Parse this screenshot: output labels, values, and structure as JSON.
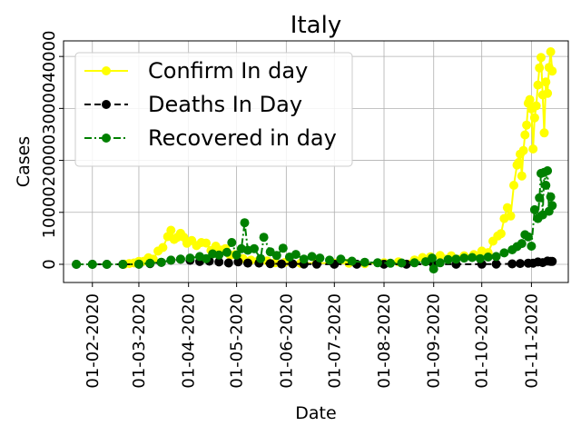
{
  "chart_data": {
    "type": "line",
    "title": "Italy",
    "xlabel": "Date",
    "ylabel": "Cases",
    "x_start": "2020-01-22",
    "x_end": "2020-11-14",
    "x_ticks": [
      "01-02-2020",
      "01-03-2020",
      "01-04-2020",
      "01-05-2020",
      "01-06-2020",
      "01-07-2020",
      "01-08-2020",
      "01-09-2020",
      "01-10-2020",
      "01-11-2020"
    ],
    "y_ticks": [
      "0",
      "10000",
      "20000",
      "30000",
      "40000"
    ],
    "ylim": [
      -3500,
      43000
    ],
    "grid": true,
    "legend_position": "top-left",
    "series": [
      {
        "name": "Confirm In day",
        "color": "#ffff00",
        "line_style": "solid",
        "marker": "circle",
        "values": [
          [
            "2020-02-21",
            20
          ],
          [
            "2020-02-24",
            150
          ],
          [
            "2020-02-27",
            250
          ],
          [
            "2020-03-01",
            570
          ],
          [
            "2020-03-04",
            590
          ],
          [
            "2020-03-07",
            1250
          ],
          [
            "2020-03-10",
            980
          ],
          [
            "2020-03-13",
            2550
          ],
          [
            "2020-03-16",
            3230
          ],
          [
            "2020-03-19",
            5320
          ],
          [
            "2020-03-21",
            6560
          ],
          [
            "2020-03-23",
            4790
          ],
          [
            "2020-03-25",
            5210
          ],
          [
            "2020-03-27",
            5960
          ],
          [
            "2020-03-29",
            5220
          ],
          [
            "2020-03-31",
            4050
          ],
          [
            "2020-04-03",
            4580
          ],
          [
            "2020-04-06",
            3600
          ],
          [
            "2020-04-09",
            4200
          ],
          [
            "2020-04-12",
            4090
          ],
          [
            "2020-04-15",
            2670
          ],
          [
            "2020-04-18",
            3490
          ],
          [
            "2020-04-21",
            2730
          ],
          [
            "2020-04-24",
            3020
          ],
          [
            "2020-04-27",
            1740
          ],
          [
            "2020-04-30",
            1870
          ],
          [
            "2020-05-05",
            1080
          ],
          [
            "2020-05-10",
            800
          ],
          [
            "2020-05-15",
            790
          ],
          [
            "2020-05-20",
            660
          ],
          [
            "2020-05-25",
            300
          ],
          [
            "2020-05-31",
            350
          ],
          [
            "2020-06-10",
            200
          ],
          [
            "2020-06-20",
            260
          ],
          [
            "2020-07-01",
            180
          ],
          [
            "2020-07-10",
            230
          ],
          [
            "2020-07-20",
            130
          ],
          [
            "2020-08-01",
            300
          ],
          [
            "2020-08-10",
            460
          ],
          [
            "2020-08-20",
            840
          ],
          [
            "2020-08-25",
            1300
          ],
          [
            "2020-08-30",
            1440
          ],
          [
            "2020-09-05",
            1700
          ],
          [
            "2020-09-12",
            1640
          ],
          [
            "2020-09-20",
            1640
          ],
          [
            "2020-09-26",
            1870
          ],
          [
            "2020-10-01",
            2550
          ],
          [
            "2020-10-05",
            2260
          ],
          [
            "2020-10-08",
            4450
          ],
          [
            "2020-10-11",
            5450
          ],
          [
            "2020-10-13",
            5900
          ],
          [
            "2020-10-15",
            8800
          ],
          [
            "2020-10-17",
            10900
          ],
          [
            "2020-10-19",
            9300
          ],
          [
            "2020-10-21",
            15200
          ],
          [
            "2020-10-23",
            19100
          ],
          [
            "2020-10-24",
            19600
          ],
          [
            "2020-10-25",
            21200
          ],
          [
            "2020-10-26",
            17000
          ],
          [
            "2020-10-27",
            21900
          ],
          [
            "2020-10-28",
            24900
          ],
          [
            "2020-10-29",
            26800
          ],
          [
            "2020-10-30",
            31000
          ],
          [
            "2020-10-31",
            31700
          ],
          [
            "2020-11-01",
            29900
          ],
          [
            "2020-11-02",
            22200
          ],
          [
            "2020-11-03",
            28200
          ],
          [
            "2020-11-04",
            30500
          ],
          [
            "2020-11-05",
            34500
          ],
          [
            "2020-11-06",
            37800
          ],
          [
            "2020-11-07",
            39800
          ],
          [
            "2020-11-08",
            32600
          ],
          [
            "2020-11-09",
            25300
          ],
          [
            "2020-11-10",
            35100
          ],
          [
            "2020-11-11",
            32900
          ],
          [
            "2020-11-12",
            37900
          ],
          [
            "2020-11-13",
            40900
          ],
          [
            "2020-11-14",
            37200
          ]
        ]
      },
      {
        "name": "Deaths In Day",
        "color": "#000000",
        "line_style": "dashed",
        "marker": "circle",
        "values": [
          [
            "2020-01-22",
            0
          ],
          [
            "2020-02-01",
            0
          ],
          [
            "2020-02-10",
            0
          ],
          [
            "2020-02-20",
            0
          ],
          [
            "2020-03-01",
            10
          ],
          [
            "2020-03-08",
            130
          ],
          [
            "2020-03-15",
            370
          ],
          [
            "2020-03-21",
            790
          ],
          [
            "2020-03-27",
            970
          ],
          [
            "2020-04-02",
            760
          ],
          [
            "2020-04-08",
            540
          ],
          [
            "2020-04-14",
            600
          ],
          [
            "2020-04-20",
            450
          ],
          [
            "2020-04-26",
            260
          ],
          [
            "2020-05-02",
            470
          ],
          [
            "2020-05-08",
            240
          ],
          [
            "2020-05-15",
            240
          ],
          [
            "2020-05-22",
            130
          ],
          [
            "2020-05-29",
            70
          ],
          [
            "2020-06-05",
            80
          ],
          [
            "2020-06-12",
            50
          ],
          [
            "2020-06-20",
            30
          ],
          [
            "2020-07-01",
            20
          ],
          [
            "2020-07-15",
            15
          ],
          [
            "2020-08-01",
            5
          ],
          [
            "2020-08-15",
            10
          ],
          [
            "2020-09-01",
            10
          ],
          [
            "2020-09-15",
            20
          ],
          [
            "2020-10-01",
            25
          ],
          [
            "2020-10-10",
            40
          ],
          [
            "2020-10-20",
            90
          ],
          [
            "2020-10-25",
            150
          ],
          [
            "2020-10-30",
            220
          ],
          [
            "2020-11-02",
            230
          ],
          [
            "2020-11-05",
            450
          ],
          [
            "2020-11-08",
            330
          ],
          [
            "2020-11-11",
            620
          ],
          [
            "2020-11-13",
            550
          ],
          [
            "2020-11-14",
            550
          ]
        ]
      },
      {
        "name": "Recovered in day",
        "color": "#008000",
        "line_style": "dashdot",
        "marker": "circle",
        "values": [
          [
            "2020-01-22",
            0
          ],
          [
            "2020-02-01",
            0
          ],
          [
            "2020-02-10",
            0
          ],
          [
            "2020-02-20",
            0
          ],
          [
            "2020-03-01",
            40
          ],
          [
            "2020-03-08",
            200
          ],
          [
            "2020-03-15",
            400
          ],
          [
            "2020-03-21",
            800
          ],
          [
            "2020-03-27",
            1000
          ],
          [
            "2020-04-02",
            1200
          ],
          [
            "2020-04-08",
            1500
          ],
          [
            "2020-04-12",
            1100
          ],
          [
            "2020-04-16",
            2000
          ],
          [
            "2020-04-20",
            1800
          ],
          [
            "2020-04-25",
            2300
          ],
          [
            "2020-04-28",
            4200
          ],
          [
            "2020-05-01",
            1800
          ],
          [
            "2020-05-04",
            3000
          ],
          [
            "2020-05-06",
            8000
          ],
          [
            "2020-05-08",
            2700
          ],
          [
            "2020-05-12",
            3000
          ],
          [
            "2020-05-16",
            1100
          ],
          [
            "2020-05-18",
            5200
          ],
          [
            "2020-05-22",
            2400
          ],
          [
            "2020-05-26",
            1700
          ],
          [
            "2020-05-30",
            3100
          ],
          [
            "2020-06-03",
            1400
          ],
          [
            "2020-06-07",
            1900
          ],
          [
            "2020-06-12",
            1000
          ],
          [
            "2020-06-17",
            1500
          ],
          [
            "2020-06-22",
            1200
          ],
          [
            "2020-06-28",
            800
          ],
          [
            "2020-07-05",
            1000
          ],
          [
            "2020-07-12",
            600
          ],
          [
            "2020-07-20",
            400
          ],
          [
            "2020-07-28",
            300
          ],
          [
            "2020-08-05",
            200
          ],
          [
            "2020-08-12",
            250
          ],
          [
            "2020-08-20",
            300
          ],
          [
            "2020-08-27",
            500
          ],
          [
            "2020-08-31",
            1200
          ],
          [
            "2020-09-01",
            -900
          ],
          [
            "2020-09-05",
            300
          ],
          [
            "2020-09-10",
            900
          ],
          [
            "2020-09-15",
            1000
          ],
          [
            "2020-09-20",
            1200
          ],
          [
            "2020-09-25",
            1300
          ],
          [
            "2020-09-30",
            1100
          ],
          [
            "2020-10-05",
            1400
          ],
          [
            "2020-10-10",
            1500
          ],
          [
            "2020-10-15",
            2200
          ],
          [
            "2020-10-20",
            2800
          ],
          [
            "2020-10-23",
            3400
          ],
          [
            "2020-10-26",
            4000
          ],
          [
            "2020-10-28",
            5700
          ],
          [
            "2020-10-30",
            5300
          ],
          [
            "2020-11-01",
            3500
          ],
          [
            "2020-11-03",
            10500
          ],
          [
            "2020-11-05",
            8800
          ],
          [
            "2020-11-06",
            12800
          ],
          [
            "2020-11-07",
            17500
          ],
          [
            "2020-11-08",
            9500
          ],
          [
            "2020-11-09",
            17700
          ],
          [
            "2020-11-10",
            15200
          ],
          [
            "2020-11-11",
            18000
          ],
          [
            "2020-11-12",
            10200
          ],
          [
            "2020-11-13",
            13000
          ],
          [
            "2020-11-14",
            11300
          ]
        ]
      }
    ]
  }
}
